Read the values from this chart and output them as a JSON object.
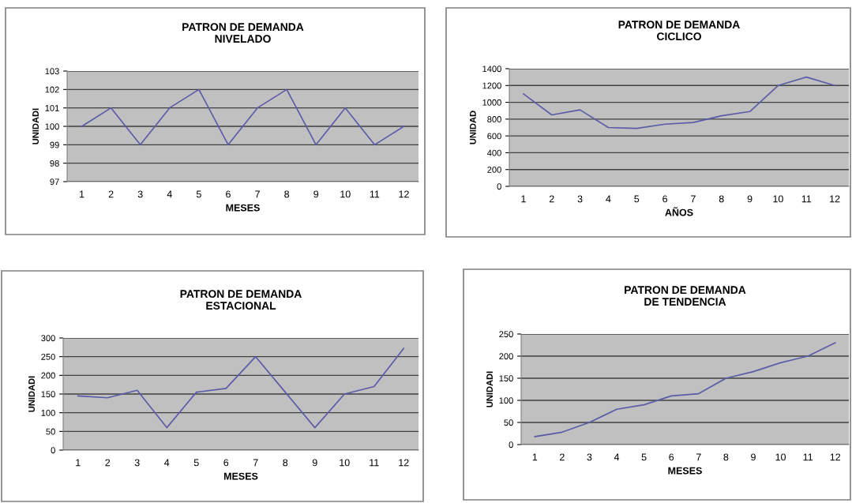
{
  "chart_data": [
    {
      "type": "line",
      "title": "PATRON DE DEMANDA\nNIVELADO",
      "xlabel": "MESES",
      "ylabel": "UNIDADI",
      "categories": [
        "1",
        "2",
        "3",
        "4",
        "5",
        "6",
        "7",
        "8",
        "9",
        "10",
        "11",
        "12"
      ],
      "series": [
        {
          "color": "#5b5ba8",
          "values": [
            100,
            101,
            99,
            101,
            102,
            99,
            101,
            102,
            99,
            101,
            99,
            100
          ]
        }
      ],
      "ylim": [
        97,
        103
      ],
      "yticks": [
        97,
        98,
        99,
        100,
        101,
        102,
        103
      ],
      "grid": "y",
      "marker": "none",
      "line_style": "solid"
    },
    {
      "type": "line",
      "title": "PATRON DE DEMANDA\nCICLICO",
      "xlabel": "AÑOS",
      "ylabel": "UNIDAD",
      "categories": [
        "1",
        "2",
        "3",
        "4",
        "5",
        "6",
        "7",
        "8",
        "9",
        "10",
        "11",
        "12"
      ],
      "series": [
        {
          "color": "#5b5ba8",
          "values": [
            1100,
            850,
            910,
            700,
            690,
            740,
            760,
            840,
            890,
            1200,
            1300,
            1200
          ]
        }
      ],
      "ylim": [
        0,
        1400
      ],
      "yticks": [
        0,
        200,
        400,
        600,
        800,
        1000,
        1200,
        1400
      ],
      "grid": "y",
      "marker": "none",
      "line_style": "solid"
    },
    {
      "type": "line",
      "title": "PATRON DE DEMANDA\nESTACIONAL",
      "xlabel": "MESES",
      "ylabel": "UNIDADI",
      "categories": [
        "1",
        "2",
        "3",
        "4",
        "5",
        "6",
        "7",
        "8",
        "9",
        "10",
        "11",
        "12"
      ],
      "series": [
        {
          "color": "#5b5ba8",
          "values": [
            145,
            140,
            160,
            60,
            155,
            165,
            250,
            155,
            60,
            150,
            170,
            272
          ]
        }
      ],
      "ylim": [
        0,
        300
      ],
      "yticks": [
        0,
        50,
        100,
        150,
        200,
        250,
        300
      ],
      "grid": "y",
      "marker": "none",
      "line_style": "solid"
    },
    {
      "type": "line",
      "title": "PATRON DE DEMANDA\nDE TENDENCIA",
      "xlabel": "MESES",
      "ylabel": "UNIDADI",
      "categories": [
        "1",
        "2",
        "3",
        "4",
        "5",
        "6",
        "7",
        "8",
        "9",
        "10",
        "11",
        "12"
      ],
      "series": [
        {
          "color": "#5b5ba8",
          "values": [
            18,
            28,
            50,
            80,
            90,
            110,
            115,
            150,
            165,
            185,
            200,
            230
          ]
        }
      ],
      "ylim": [
        0,
        250
      ],
      "yticks": [
        0,
        50,
        100,
        150,
        200,
        250
      ],
      "grid": "y",
      "marker": "none",
      "line_style": "solid"
    }
  ]
}
